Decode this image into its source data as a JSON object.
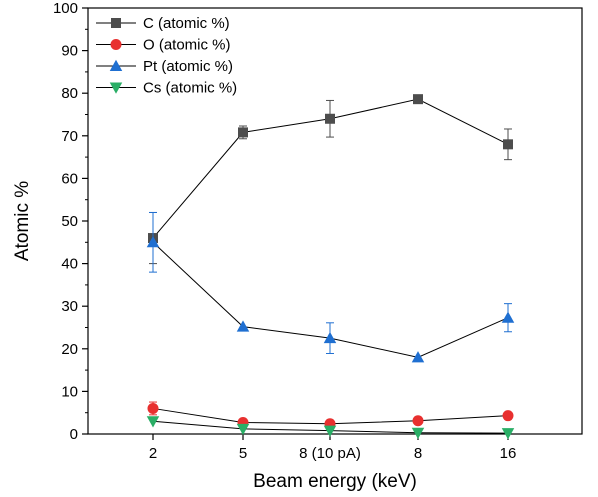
{
  "chart_data": {
    "type": "line",
    "title": "",
    "xlabel": "Beam energy (keV)",
    "ylabel": "Atomic %",
    "categories": [
      "2",
      "5",
      "8 (10 pA)",
      "8",
      "16"
    ],
    "ylim": [
      0,
      100
    ],
    "yticks": [
      0,
      10,
      20,
      30,
      40,
      50,
      60,
      70,
      80,
      90,
      100
    ],
    "grid": false,
    "legend_position": "top-left",
    "series": [
      {
        "name": "C (atomic %)",
        "marker": "square",
        "color": "#4d4d4d",
        "values": [
          46,
          70.8,
          74,
          78.6,
          68
        ],
        "errors": [
          6,
          1.5,
          4.3,
          0,
          3.6
        ]
      },
      {
        "name": "O (atomic %)",
        "marker": "circle",
        "color": "#e8302f",
        "values": [
          6,
          2.7,
          2.4,
          3.1,
          4.3
        ],
        "errors": [
          1.5,
          0,
          0,
          0,
          0
        ]
      },
      {
        "name": "Pt (atomic %)",
        "marker": "triangle-up",
        "color": "#1f6fd1",
        "values": [
          45,
          25.2,
          22.5,
          18,
          27.3
        ],
        "errors": [
          7,
          0,
          3.6,
          0,
          3.3
        ]
      },
      {
        "name": "Cs (atomic %)",
        "marker": "triangle-down",
        "color": "#2aae66",
        "values": [
          3,
          1.2,
          0.8,
          0.3,
          0.2
        ],
        "errors": [
          0,
          0,
          0,
          0,
          0
        ]
      }
    ]
  }
}
